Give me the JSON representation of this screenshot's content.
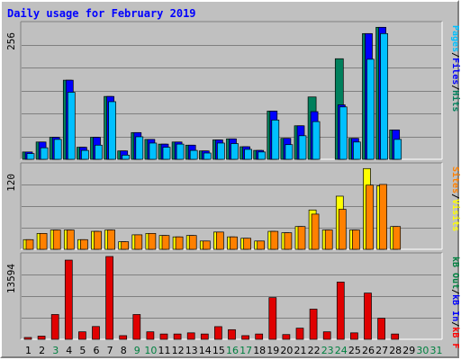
{
  "chart_data": {
    "type": "bar",
    "title": "Daily usage for February 2019",
    "categories": [
      "1",
      "2",
      "3",
      "4",
      "5",
      "6",
      "7",
      "8",
      "9",
      "10",
      "11",
      "12",
      "13",
      "14",
      "15",
      "16",
      "17",
      "18",
      "19",
      "20",
      "21",
      "22",
      "23",
      "24",
      "25",
      "26",
      "27",
      "28",
      "29",
      "30",
      "31"
    ],
    "weekend_days": [
      "3",
      "9",
      "10",
      "16",
      "17",
      "23",
      "24",
      "30",
      "31"
    ],
    "colors": {
      "title": "#0000ff",
      "hits": "#00805c",
      "files": "#0000ff",
      "pages": "#00c0ff",
      "visits": "#ffff00",
      "sites": "#ff8000",
      "kbin": "#0000ff",
      "kbout": "#008040",
      "kbf": "#ff0000",
      "kbf_bar": "#e00000",
      "weekday_label": "#000000",
      "weekend_label": "#008040",
      "separator_slash": "#000000"
    },
    "panels": [
      {
        "id": "hits",
        "ymax": 256,
        "ymax_label": "256",
        "legend": [
          "Hits",
          "Files",
          "Pages"
        ],
        "series": [
          {
            "name": "Hits",
            "values": [
              14,
              33,
              42,
              151,
              23,
              42,
              120,
              16,
              51,
              38,
              29,
              33,
              27,
              16,
              37,
              39,
              24,
              17,
              92,
              40,
              64,
              119,
              0,
              192,
              40,
              240,
              252,
              56,
              0,
              0,
              0
            ]
          },
          {
            "name": "Files",
            "values": [
              14,
              33,
              42,
              151,
              23,
              42,
              120,
              16,
              51,
              38,
              29,
              33,
              27,
              16,
              37,
              39,
              24,
              17,
              92,
              40,
              64,
              91,
              0,
              104,
              40,
              240,
              252,
              56,
              0,
              0,
              0
            ]
          },
          {
            "name": "Pages",
            "values": [
              11,
              22,
              38,
              128,
              17,
              27,
              110,
              8,
              43,
              31,
              23,
              29,
              17,
              12,
              31,
              30,
              19,
              14,
              75,
              28,
              45,
              72,
              0,
              100,
              33,
              191,
              240,
              38,
              0,
              0,
              0
            ]
          }
        ]
      },
      {
        "id": "visits",
        "ymax": 120,
        "ymax_label": "120",
        "legend": [
          "Visits",
          "Sites"
        ],
        "series": [
          {
            "name": "Visits",
            "values": [
              14,
              23,
              28,
              28,
              14,
              26,
              28,
              11,
              21,
              23,
              20,
              18,
              20,
              12,
              25,
              18,
              16,
              12,
              26,
              24,
              33,
              57,
              28,
              77,
              28,
              117,
              92,
              33,
              0,
              0,
              0
            ]
          },
          {
            "name": "Sites",
            "values": [
              14,
              23,
              28,
              28,
              14,
              26,
              28,
              11,
              21,
              23,
              20,
              18,
              20,
              12,
              25,
              18,
              16,
              12,
              26,
              24,
              33,
              51,
              28,
              58,
              28,
              93,
              94,
              33,
              0,
              0,
              0
            ]
          }
        ]
      },
      {
        "id": "kbytes",
        "ymax": 13594,
        "ymax_label": "13594",
        "legend": [
          "kB F",
          "kB In",
          "kB Out"
        ],
        "series": [
          {
            "name": "kB F",
            "values": [
              300,
              520,
              4070,
              13000,
              1230,
              2100,
              13594,
              600,
              4070,
              1230,
              870,
              870,
              1060,
              870,
              2080,
              1580,
              600,
              870,
              6850,
              780,
              1830,
              4950,
              1230,
              9400,
              1060,
              7590,
              3450,
              870,
              0,
              0,
              0
            ]
          },
          {
            "name": "kB In",
            "values": [
              0,
              0,
              0,
              0,
              0,
              0,
              0,
              0,
              0,
              0,
              0,
              0,
              0,
              0,
              0,
              0,
              0,
              0,
              0,
              0,
              0,
              0,
              0,
              0,
              0,
              0,
              0,
              0,
              0,
              0,
              0
            ]
          },
          {
            "name": "kB Out",
            "values": [
              0,
              0,
              0,
              0,
              0,
              0,
              0,
              0,
              0,
              0,
              0,
              0,
              0,
              0,
              0,
              0,
              0,
              0,
              0,
              0,
              0,
              0,
              0,
              0,
              0,
              0,
              0,
              0,
              0,
              0,
              0
            ]
          }
        ]
      }
    ]
  }
}
